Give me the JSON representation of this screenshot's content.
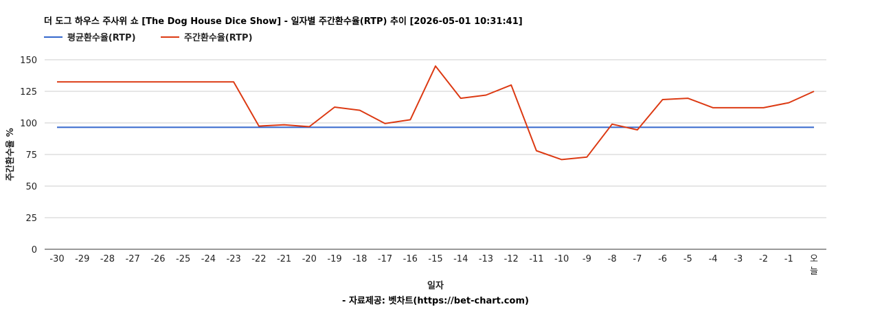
{
  "chart_data": {
    "type": "line",
    "title": "더 도그 하우스 주사위 쇼 [The Dog House Dice Show] - 일자별 주간환수율(RTP) 추이 [2026-05-01 10:31:41]",
    "xlabel": "일자",
    "ylabel": "주간환수율 %",
    "source": "- 자료제공: 벳차트(https://bet-chart.com)",
    "ylim": [
      0,
      150
    ],
    "yticks": [
      0,
      25,
      50,
      75,
      100,
      125,
      150
    ],
    "grid": true,
    "legend_position": "top-left",
    "categories": [
      "-30",
      "-29",
      "-28",
      "-27",
      "-26",
      "-25",
      "-24",
      "-23",
      "-22",
      "-21",
      "-20",
      "-19",
      "-18",
      "-17",
      "-16",
      "-15",
      "-14",
      "-13",
      "-12",
      "-11",
      "-10",
      "-9",
      "-8",
      "-7",
      "-6",
      "-5",
      "-4",
      "-3",
      "-2",
      "-1",
      "오늘"
    ],
    "series": [
      {
        "name": "평균환수율(RTP)",
        "color": "#3366cc",
        "values": [
          96.5,
          96.5,
          96.5,
          96.5,
          96.5,
          96.5,
          96.5,
          96.5,
          96.5,
          96.5,
          96.5,
          96.5,
          96.5,
          96.5,
          96.5,
          96.5,
          96.5,
          96.5,
          96.5,
          96.5,
          96.5,
          96.5,
          96.5,
          96.5,
          96.5,
          96.5,
          96.5,
          96.5,
          96.5,
          96.5,
          96.5
        ]
      },
      {
        "name": "주간환수율(RTP)",
        "color": "#dc3912",
        "values": [
          132.5,
          132.5,
          132.5,
          132.5,
          132.5,
          132.5,
          132.5,
          132.5,
          97.5,
          98.5,
          97.0,
          112.5,
          110.0,
          99.5,
          102.5,
          145.0,
          119.5,
          122.0,
          130.0,
          78.0,
          71.0,
          73.0,
          99.0,
          94.5,
          118.5,
          119.5,
          112.0,
          112.0,
          112.0,
          116.0,
          125.0
        ]
      }
    ]
  }
}
